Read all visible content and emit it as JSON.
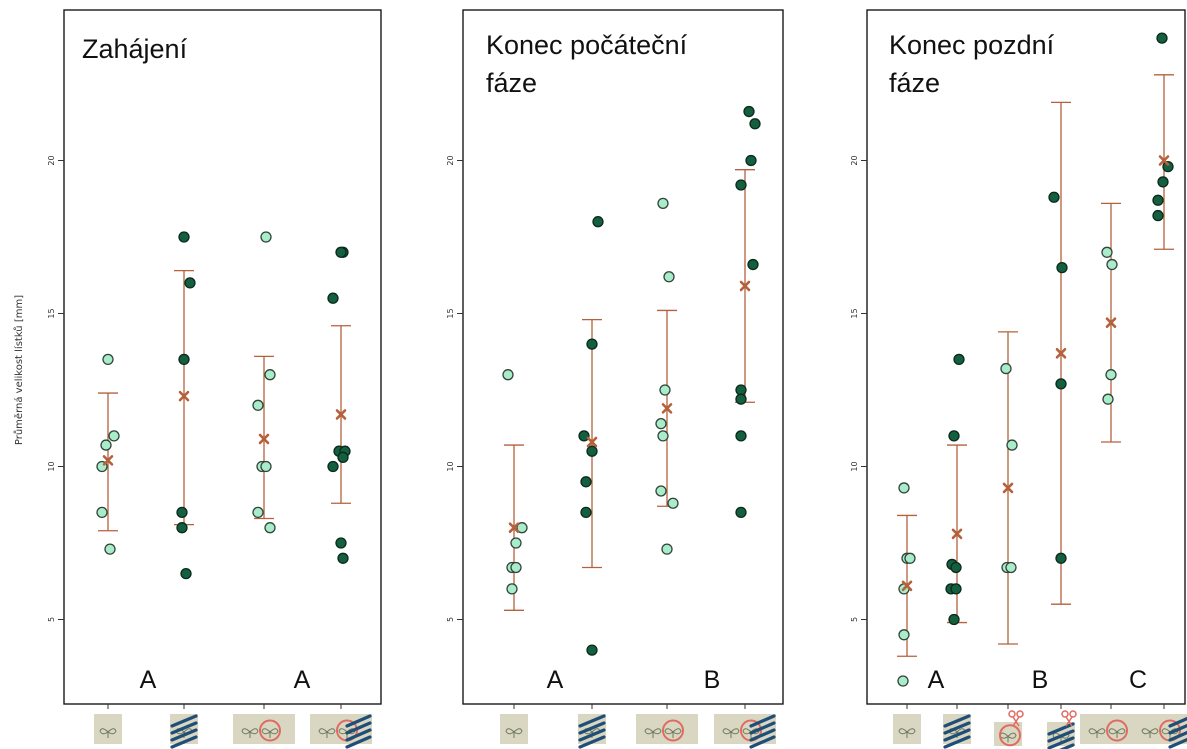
{
  "y_axis_label": "Průměrná velikost lístků [mm]",
  "chart_data": [
    {
      "type": "scatter",
      "title": "Zahájení",
      "ylabel": "Průměrná velikost lístků [mm]",
      "ylim": [
        2.3,
        23.5
      ],
      "yticks": [
        5,
        10,
        15,
        20
      ],
      "ytick_labels": [
        "5",
        "10",
        "15",
        "20"
      ],
      "group_letters": [
        {
          "letter": "A",
          "under_groups": [
            0,
            1
          ]
        },
        {
          "letter": "A",
          "under_groups": [
            2,
            3
          ]
        }
      ],
      "groups": [
        {
          "icon": "plant-icon",
          "point_color": "light",
          "points": [
            13.5,
            11.0,
            10.7,
            10.0,
            8.5,
            7.3
          ],
          "mean": 10.2,
          "err_low": 7.9,
          "err_high": 12.4
        },
        {
          "icon": "hatched-plant-icon",
          "point_color": "dark",
          "points": [
            17.5,
            16.0,
            13.5,
            8.5,
            8.0,
            6.5
          ],
          "mean": 12.3,
          "err_low": 8.1,
          "err_high": 16.4
        },
        {
          "icon": "plant-pair-circled-icon",
          "point_color": "light",
          "points": [
            17.5,
            13.0,
            12.0,
            10.0,
            10.0,
            8.5,
            8.0
          ],
          "mean": 10.9,
          "err_low": 8.3,
          "err_high": 13.6
        },
        {
          "icon": "hatched-plant-pair-circled-icon",
          "point_color": "dark",
          "points": [
            17.0,
            17.0,
            15.5,
            10.5,
            10.5,
            10.3,
            10.0,
            7.5,
            7.0
          ],
          "mean": 11.7,
          "err_low": 8.8,
          "err_high": 14.6
        }
      ]
    },
    {
      "type": "scatter",
      "title": "Konec počáteční fáze",
      "ylabel": "",
      "ylim": [
        2.3,
        23.5
      ],
      "yticks": [
        5,
        10,
        15,
        20
      ],
      "ytick_labels": [
        "5",
        "10",
        "15",
        "20"
      ],
      "group_letters": [
        {
          "letter": "A",
          "under_groups": [
            0,
            1
          ]
        },
        {
          "letter": "B",
          "under_groups": [
            2,
            3
          ]
        }
      ],
      "groups": [
        {
          "icon": "plant-icon",
          "point_color": "light",
          "points": [
            13.0,
            8.0,
            7.5,
            6.7,
            6.7,
            6.0
          ],
          "mean": 8.0,
          "err_low": 5.3,
          "err_high": 10.7
        },
        {
          "icon": "hatched-plant-icon",
          "point_color": "dark",
          "points": [
            18.0,
            14.0,
            11.0,
            10.5,
            9.5,
            8.5,
            4.0
          ],
          "mean": 10.8,
          "err_low": 6.7,
          "err_high": 14.8
        },
        {
          "icon": "plant-pair-circled-icon",
          "point_color": "light",
          "points": [
            18.6,
            16.2,
            12.5,
            11.4,
            11.0,
            9.2,
            8.8,
            7.3
          ],
          "mean": 11.9,
          "err_low": 8.7,
          "err_high": 15.1
        },
        {
          "icon": "hatched-plant-pair-circled-icon",
          "point_color": "dark",
          "points": [
            21.6,
            21.2,
            20.0,
            19.2,
            16.6,
            12.5,
            12.2,
            11.0,
            8.5
          ],
          "mean": 15.9,
          "err_low": 12.1,
          "err_high": 19.7
        }
      ]
    },
    {
      "type": "scatter",
      "title": "Konec pozdní fáze",
      "ylabel": "",
      "ylim": [
        2.3,
        23.5
      ],
      "yticks": [
        5,
        10,
        15,
        20
      ],
      "ytick_labels": [
        "5",
        "10",
        "15",
        "20"
      ],
      "group_letters": [
        {
          "letter": "A",
          "under_groups": [
            0,
            1
          ]
        },
        {
          "letter": "B",
          "under_groups": [
            2,
            3
          ]
        },
        {
          "letter": "C",
          "under_groups": [
            4,
            5
          ]
        }
      ],
      "groups": [
        {
          "icon": "plant-icon",
          "point_color": "light",
          "points": [
            9.3,
            7.0,
            7.0,
            6.0,
            4.5
          ],
          "mean": 6.1,
          "err_low": 3.8,
          "err_high": 8.4
        },
        {
          "icon": "hatched-plant-icon",
          "point_color": "dark",
          "points": [
            13.5,
            11.0,
            6.8,
            6.7,
            6.0,
            6.0,
            5.0
          ],
          "mean": 7.8,
          "err_low": 4.9,
          "err_high": 10.7
        },
        {
          "icon": "plant-circled-scissors-icon",
          "point_color": "light",
          "points": [
            13.2,
            10.7,
            6.7,
            6.7
          ],
          "mean": 9.3,
          "err_low": 4.2,
          "err_high": 14.4
        },
        {
          "icon": "hatched-plant-scissors-icon",
          "point_color": "dark",
          "points": [
            18.8,
            16.5,
            12.7,
            7.0
          ],
          "mean": 13.7,
          "err_low": 5.5,
          "err_high": 21.9
        },
        {
          "icon": "plant-pair-circled-icon",
          "point_color": "light",
          "points": [
            17.0,
            16.6,
            13.0,
            12.2
          ],
          "mean": 14.7,
          "err_low": 10.8,
          "err_high": 18.6
        },
        {
          "icon": "hatched-plant-pair-circled-icon",
          "point_color": "dark",
          "points": [
            24.0,
            19.8,
            19.3,
            18.7,
            18.2
          ],
          "mean": 20.0,
          "err_low": 17.1,
          "err_high": 22.8
        }
      ]
    }
  ]
}
